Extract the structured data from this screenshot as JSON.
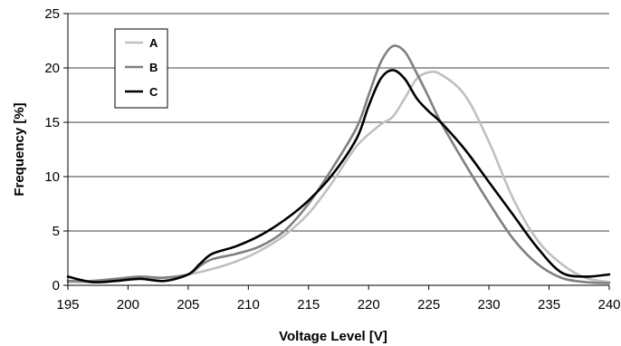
{
  "chart_data": {
    "type": "line",
    "title": "",
    "xlabel": "Voltage Level [V]",
    "ylabel": "Frequency [%]",
    "xlim": [
      195,
      240
    ],
    "ylim": [
      0,
      25
    ],
    "xticks": [
      "195",
      "200",
      "205",
      "210",
      "215",
      "220",
      "225",
      "230",
      "235",
      "240"
    ],
    "yticks": [
      "0",
      "5",
      "10",
      "15",
      "20",
      "25"
    ],
    "grid": "horizontal",
    "legend": "top-left",
    "series": [
      {
        "name": "A",
        "color": "#c0c0c0",
        "x": [
          195,
          197,
          199,
          201,
          203,
          205,
          207,
          209,
          211,
          213,
          215,
          217,
          219,
          221,
          222,
          223,
          224,
          225,
          226,
          228,
          230,
          232,
          234,
          236,
          238,
          240
        ],
        "y": [
          0.3,
          0.3,
          0.5,
          0.6,
          0.7,
          1.0,
          1.5,
          2.2,
          3.2,
          4.6,
          6.6,
          9.5,
          12.8,
          14.8,
          15.5,
          17.2,
          19.0,
          19.6,
          19.4,
          17.5,
          13.2,
          8.0,
          4.2,
          2.0,
          0.7,
          0.3
        ]
      },
      {
        "name": "B",
        "color": "#808080",
        "x": [
          195,
          197,
          199,
          201,
          203,
          205,
          206,
          207,
          209,
          211,
          213,
          215,
          217,
          219,
          220,
          221,
          222,
          223,
          224,
          225,
          226,
          228,
          230,
          232,
          234,
          236,
          238,
          240
        ],
        "y": [
          0.4,
          0.4,
          0.6,
          0.8,
          0.7,
          1.0,
          1.8,
          2.4,
          2.9,
          3.6,
          5.0,
          7.5,
          10.8,
          14.5,
          17.5,
          20.5,
          22.0,
          21.5,
          19.5,
          17.3,
          15.0,
          11.2,
          7.6,
          4.3,
          2.0,
          0.7,
          0.3,
          0.2
        ]
      },
      {
        "name": "C",
        "color": "#000000",
        "x": [
          195,
          197,
          199,
          201,
          203,
          205,
          206,
          207,
          209,
          211,
          213,
          215,
          217,
          219,
          220,
          221,
          222,
          223,
          224,
          225,
          226,
          228,
          230,
          232,
          234,
          236,
          238,
          240
        ],
        "y": [
          0.8,
          0.3,
          0.4,
          0.6,
          0.4,
          1.0,
          2.0,
          2.9,
          3.6,
          4.6,
          6.0,
          7.8,
          10.2,
          13.5,
          16.5,
          19.0,
          19.8,
          19.0,
          17.2,
          16.0,
          15.0,
          12.5,
          9.5,
          6.5,
          3.5,
          1.2,
          0.8,
          1.0
        ]
      }
    ]
  }
}
